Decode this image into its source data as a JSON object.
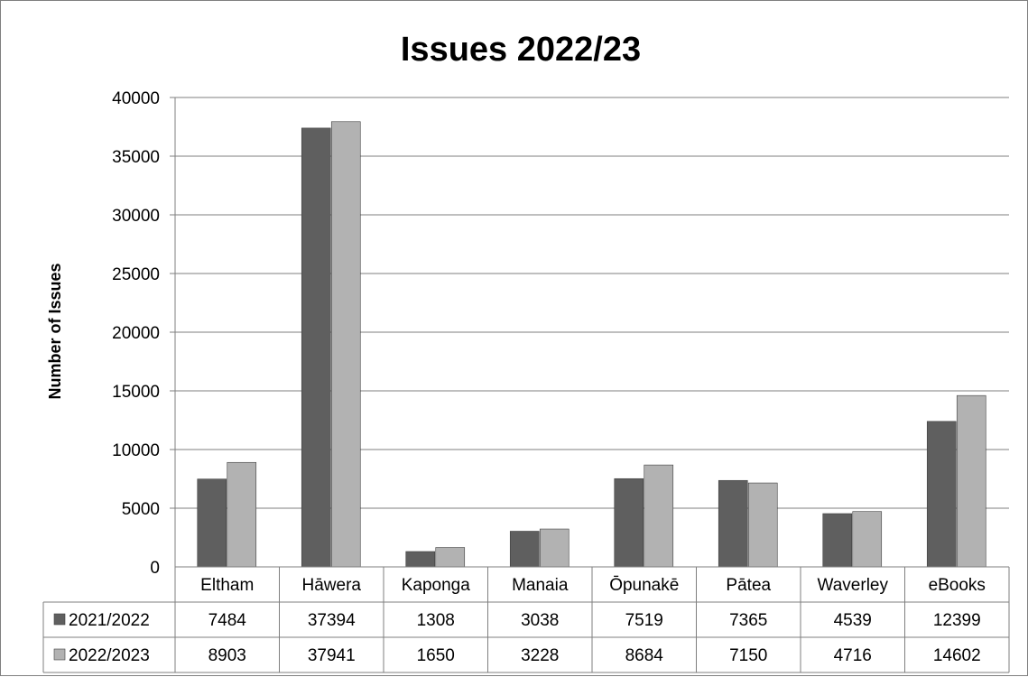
{
  "chart_data": {
    "type": "bar",
    "title": "Issues 2022/23",
    "xlabel": "",
    "ylabel": "Number of Issues",
    "ylim": [
      0,
      40000
    ],
    "yticks": [
      0,
      5000,
      10000,
      15000,
      20000,
      25000,
      30000,
      35000,
      40000
    ],
    "grid": true,
    "legend": "data-table",
    "categories": [
      "Eltham",
      "Hāwera",
      "Kaponga",
      "Manaia",
      "Ōpunakē",
      "Pātea",
      "Waverley",
      "eBooks"
    ],
    "series": [
      {
        "name": "2021/2022",
        "color": "#5f5f5f",
        "values": [
          7484,
          37394,
          1308,
          3038,
          7519,
          7365,
          4539,
          12399
        ]
      },
      {
        "name": "2022/2023",
        "color": "#b2b2b2",
        "values": [
          8903,
          37941,
          1650,
          3228,
          8684,
          7150,
          4716,
          14602
        ]
      }
    ]
  }
}
